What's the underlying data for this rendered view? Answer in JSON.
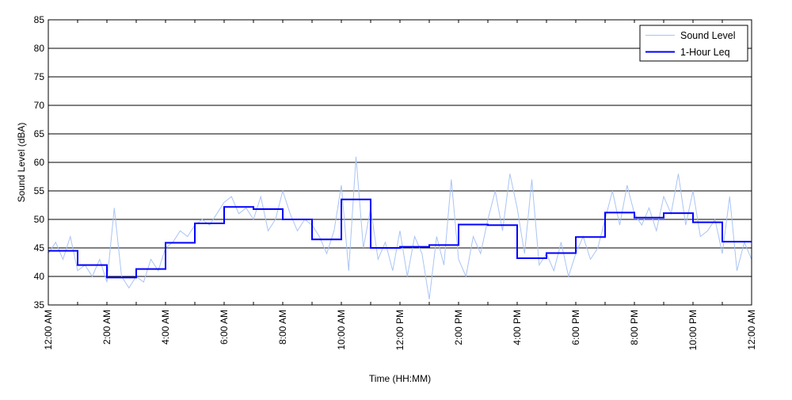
{
  "chart_data": {
    "type": "line",
    "title": "",
    "xlabel": "Time (HH:MM)",
    "ylabel": "Sound Level (dBA)",
    "xlim": [
      0,
      24
    ],
    "ylim": [
      35,
      85
    ],
    "y_ticks": [
      35,
      40,
      45,
      50,
      55,
      60,
      65,
      70,
      75,
      80,
      85
    ],
    "x_ticks": [
      0,
      2,
      4,
      6,
      8,
      10,
      12,
      14,
      16,
      18,
      20,
      22,
      24
    ],
    "x_tick_labels": [
      "12:00 AM",
      "2:00 AM",
      "4:00 AM",
      "6:00 AM",
      "8:00 AM",
      "10:00 AM",
      "12:00 PM",
      "2:00 PM",
      "4:00 PM",
      "6:00 PM",
      "8:00 PM",
      "10:00 PM",
      "12:00 AM"
    ],
    "grid": "horizontal",
    "legend_position": "top-right",
    "series": [
      {
        "name": "Sound Level",
        "color": "#a9c4f5",
        "style": "thin",
        "x": [
          0.0,
          0.25,
          0.5,
          0.75,
          1.0,
          1.25,
          1.5,
          1.75,
          2.0,
          2.25,
          2.5,
          2.75,
          3.0,
          3.25,
          3.5,
          3.75,
          4.0,
          4.25,
          4.5,
          4.75,
          5.0,
          5.25,
          5.5,
          5.75,
          6.0,
          6.25,
          6.5,
          6.75,
          7.0,
          7.25,
          7.5,
          7.75,
          8.0,
          8.25,
          8.5,
          8.75,
          9.0,
          9.25,
          9.5,
          9.75,
          10.0,
          10.25,
          10.5,
          10.75,
          11.0,
          11.25,
          11.5,
          11.75,
          12.0,
          12.25,
          12.5,
          12.75,
          13.0,
          13.25,
          13.5,
          13.75,
          14.0,
          14.25,
          14.5,
          14.75,
          15.0,
          15.25,
          15.5,
          15.75,
          16.0,
          16.25,
          16.5,
          16.75,
          17.0,
          17.25,
          17.5,
          17.75,
          18.0,
          18.25,
          18.5,
          18.75,
          19.0,
          19.25,
          19.5,
          19.75,
          20.0,
          20.25,
          20.5,
          20.75,
          21.0,
          21.25,
          21.5,
          21.75,
          22.0,
          22.25,
          22.5,
          22.75,
          23.0,
          23.25,
          23.5,
          23.75,
          24.0
        ],
        "values": [
          44,
          46,
          43,
          47,
          41,
          42,
          40,
          43,
          39,
          52,
          40,
          38,
          40,
          39,
          43,
          41,
          45,
          46,
          48,
          47,
          49,
          50,
          49,
          51,
          53,
          54,
          51,
          52,
          50,
          54,
          48,
          50,
          55,
          51,
          48,
          50,
          49,
          47,
          44,
          48,
          56,
          41,
          61,
          45,
          52,
          43,
          46,
          41,
          48,
          40,
          47,
          44,
          36,
          47,
          42,
          57,
          43,
          40,
          47,
          44,
          50,
          55,
          48,
          58,
          52,
          44,
          57,
          42,
          44,
          41,
          46,
          40,
          44,
          47,
          43,
          45,
          50,
          55,
          49,
          56,
          51,
          49,
          52,
          48,
          54,
          51,
          58,
          49,
          55,
          47,
          48,
          50,
          44,
          54,
          41,
          46,
          43
        ]
      },
      {
        "name": "1-Hour Leq",
        "color": "#0000ff",
        "style": "step",
        "x": [
          0,
          1,
          2,
          3,
          4,
          5,
          6,
          7,
          8,
          9,
          10,
          11,
          12,
          13,
          14,
          15,
          16,
          17,
          18,
          19,
          20,
          21,
          22,
          23
        ],
        "values": [
          44.5,
          42.0,
          39.8,
          41.3,
          45.9,
          49.3,
          52.2,
          51.8,
          50.0,
          46.5,
          53.5,
          45.0,
          45.2,
          45.5,
          49.1,
          49.0,
          43.2,
          44.1,
          46.9,
          51.2,
          50.3,
          51.1,
          49.5,
          46.1
        ]
      }
    ]
  }
}
